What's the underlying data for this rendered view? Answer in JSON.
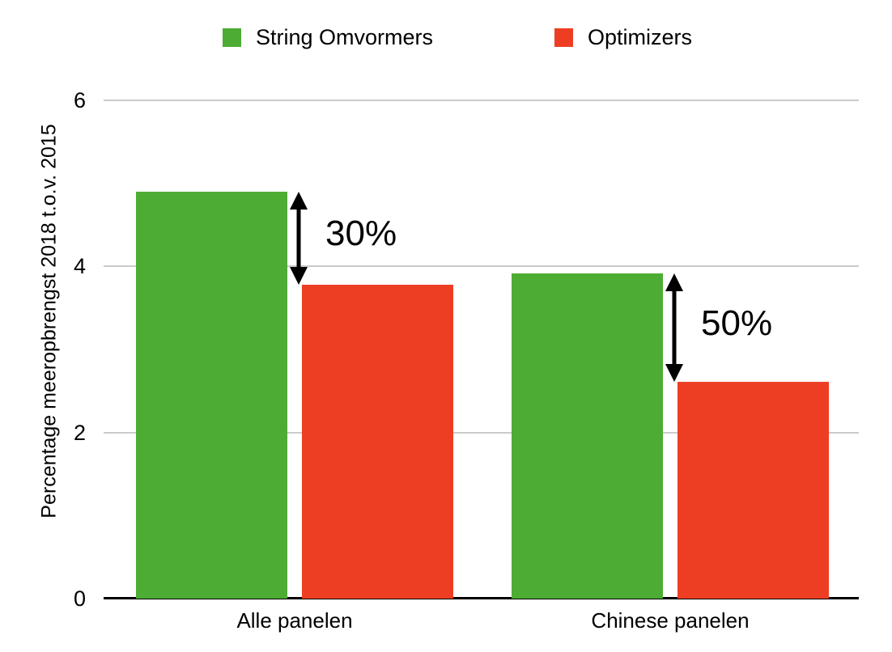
{
  "chart_data": {
    "type": "bar",
    "title": "",
    "xlabel": "",
    "ylabel": "Percentage meeropbrengst 2018 t.o.v. 2015",
    "ylim": [
      0,
      6
    ],
    "yticks": [
      0,
      2,
      4,
      6
    ],
    "grid": true,
    "legend_position": "top",
    "categories": [
      "Alle panelen",
      "Chinese panelen"
    ],
    "series": [
      {
        "name": "String Omvormers",
        "color": "#4DAC33",
        "values": [
          4.9,
          3.92
        ]
      },
      {
        "name": "Optimizers",
        "color": "#ED3E23",
        "values": [
          3.78,
          2.61
        ]
      }
    ],
    "annotations": [
      {
        "label": "30%",
        "group": 0,
        "description": "difference between String Omvormers and Optimizers for Alle panelen"
      },
      {
        "label": "50%",
        "group": 1,
        "description": "difference between String Omvormers and Optimizers for Chinese panelen"
      }
    ],
    "colors": {
      "gridline": "#cbcbcb",
      "axis": "#000000",
      "text": "#000000"
    }
  }
}
